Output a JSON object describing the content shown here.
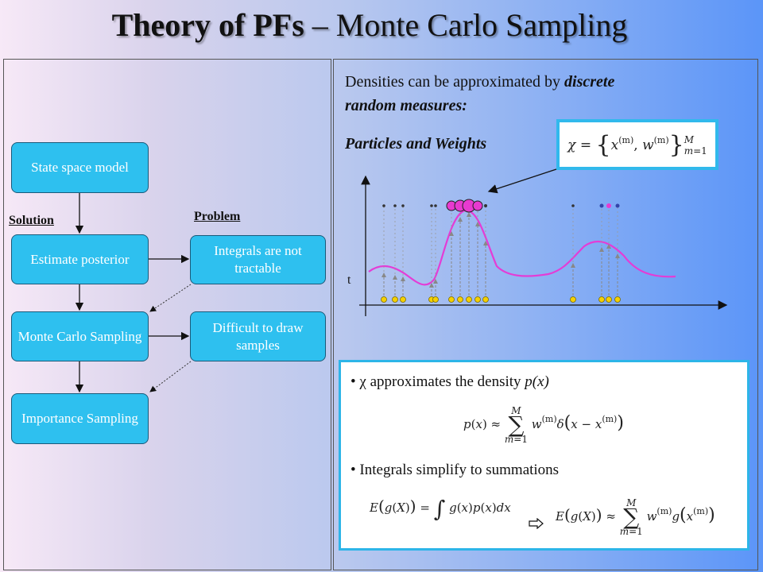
{
  "title": {
    "bold": "Theory of PFs",
    "rest": " – Monte Carlo Sampling"
  },
  "flow": {
    "state_space": "State space model",
    "solution_label": "Solution",
    "problem_label": "Problem",
    "estimate_posterior": "Estimate posterior",
    "integrals": "Integrals are not tractable",
    "monte_carlo": "Monte Carlo Sampling",
    "difficult": "Difficult to draw samples",
    "importance": "Importance Sampling"
  },
  "right": {
    "line1_plain": "Densities can be approximated by ",
    "line1_italic": "discrete",
    "line2_italic": "random measures:",
    "particles": "Particles and Weights",
    "chi_formula": "χ = {x(m), w(m)}M m=1",
    "axis_t": "t"
  },
  "bullets": {
    "b1_prefix": "χ approximates the density ",
    "b1_italic": "p(x)",
    "b2": "Integrals simplify to summations"
  },
  "colors": {
    "box_fill": "#2ec0ef",
    "curve": "#e43cd6",
    "particle_dot": "#f5d000",
    "highlight": "#e83ad0"
  }
}
